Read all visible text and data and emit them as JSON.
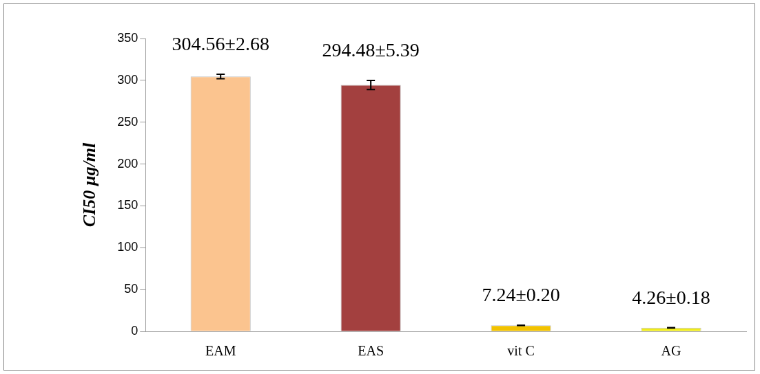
{
  "chart_data": {
    "type": "bar",
    "ylabel": "CI50 µg/ml",
    "categories": [
      "EAM",
      "EAS",
      "vit C",
      "AG"
    ],
    "values": [
      304.56,
      294.48,
      7.24,
      4.26
    ],
    "errors": [
      2.68,
      5.39,
      0.2,
      0.18
    ],
    "value_labels": [
      "304.56±2.68",
      "294.48±5.39",
      "7.24±0.20",
      "4.26±0.18"
    ],
    "colors": [
      "#fbc48f",
      "#a3403f",
      "#f2c200",
      "#f0ec1a"
    ],
    "ylim": [
      0,
      350
    ],
    "yticks": [
      0,
      50,
      100,
      150,
      200,
      250,
      300,
      350
    ],
    "grid": false,
    "legend": false
  }
}
